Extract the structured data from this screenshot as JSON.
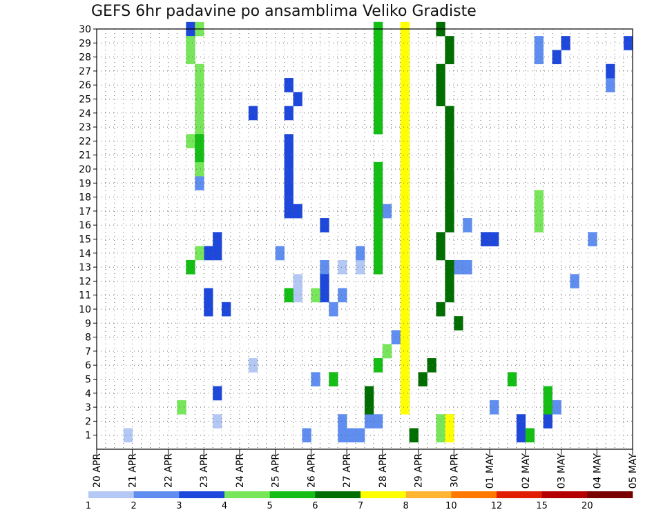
{
  "chart_data": {
    "type": "heatmap",
    "title": "GEFS 6hr padavine po ansamblima Veliko Gradiste",
    "xlabel": "",
    "ylabel": "",
    "x_tick_labels": [
      "20 APR",
      "21 APR",
      "22 APR",
      "23 APR",
      "24 APR",
      "25 APR",
      "26 APR",
      "27 APR",
      "28 APR",
      "29 APR",
      "30 APR",
      "01 MAY",
      "02 MAY",
      "03 MAY",
      "04 MAY",
      "05 MAY"
    ],
    "y_tick_labels": [
      "1",
      "2",
      "3",
      "4",
      "5",
      "6",
      "7",
      "8",
      "9",
      "10",
      "11",
      "12",
      "13",
      "14",
      "15",
      "16",
      "17",
      "18",
      "19",
      "20",
      "21",
      "22",
      "23",
      "24",
      "25",
      "26",
      "27",
      "28",
      "29",
      "30"
    ],
    "time_steps": 60,
    "member_range": [
      0,
      30
    ],
    "grid": true,
    "legend_position": "bottom",
    "legend": {
      "labels": [
        "1",
        "2",
        "3",
        "4",
        "5",
        "6",
        "7",
        "8",
        "10",
        "12",
        "15",
        "20"
      ],
      "colors": [
        "#b4c8f5",
        "#5f8ef0",
        "#1e48dc",
        "#78e65a",
        "#14be14",
        "#006e00",
        "#ffff00",
        "#ffb432",
        "#ff7800",
        "#e11e00",
        "#b40000",
        "#780000"
      ]
    },
    "cells": [
      [
        1,
        1,
        3
      ],
      [
        1,
        2,
        13
      ],
      [
        1,
        6,
        17
      ],
      [
        1,
        11,
        22
      ],
      [
        1,
        12,
        22
      ],
      [
        1,
        13,
        27
      ],
      [
        1,
        13,
        29
      ],
      [
        1,
        26,
        31
      ],
      [
        1,
        34,
        37
      ],
      [
        1,
        40,
        40
      ],
      [
        1,
        51,
        52
      ],
      [
        1,
        52,
        53
      ],
      [
        1,
        55,
        56
      ],
      [
        2,
        1,
        23
      ],
      [
        2,
        1,
        27
      ],
      [
        2,
        1,
        28
      ],
      [
        2,
        1,
        29
      ],
      [
        2,
        2,
        27
      ],
      [
        2,
        2,
        30
      ],
      [
        2,
        2,
        31
      ],
      [
        2,
        3,
        44
      ],
      [
        2,
        3,
        51
      ],
      [
        2,
        5,
        24
      ],
      [
        2,
        8,
        33
      ],
      [
        2,
        10,
        26
      ],
      [
        2,
        11,
        27
      ],
      [
        2,
        12,
        53
      ],
      [
        2,
        13,
        25
      ],
      [
        2,
        13,
        40
      ],
      [
        2,
        13,
        41
      ],
      [
        2,
        14,
        20
      ],
      [
        2,
        14,
        29
      ],
      [
        2,
        15,
        55
      ],
      [
        2,
        16,
        41
      ],
      [
        2,
        17,
        32
      ],
      [
        2,
        19,
        11
      ],
      [
        2,
        20,
        11
      ],
      [
        2,
        24,
        11
      ],
      [
        2,
        26,
        57
      ],
      [
        2,
        28,
        49
      ],
      [
        2,
        29,
        49
      ],
      [
        2,
        30,
        31
      ],
      [
        3,
        1,
        47
      ],
      [
        3,
        2,
        47
      ],
      [
        3,
        2,
        50
      ],
      [
        3,
        4,
        13
      ],
      [
        3,
        10,
        12
      ],
      [
        3,
        10,
        14
      ],
      [
        3,
        11,
        12
      ],
      [
        3,
        11,
        25
      ],
      [
        3,
        12,
        25
      ],
      [
        3,
        14,
        12
      ],
      [
        3,
        14,
        13
      ],
      [
        3,
        15,
        13
      ],
      [
        3,
        15,
        43
      ],
      [
        3,
        15,
        44
      ],
      [
        3,
        16,
        25
      ],
      [
        3,
        17,
        21
      ],
      [
        3,
        17,
        22
      ],
      [
        3,
        18,
        21
      ],
      [
        3,
        19,
        21
      ],
      [
        3,
        20,
        21
      ],
      [
        3,
        21,
        21
      ],
      [
        3,
        22,
        21
      ],
      [
        3,
        24,
        17
      ],
      [
        3,
        24,
        21
      ],
      [
        3,
        25,
        22
      ],
      [
        3,
        26,
        21
      ],
      [
        3,
        26,
        31
      ],
      [
        3,
        27,
        57
      ],
      [
        3,
        28,
        51
      ],
      [
        3,
        29,
        52
      ],
      [
        3,
        29,
        59
      ],
      [
        3,
        30,
        10
      ],
      [
        4,
        1,
        38
      ],
      [
        4,
        2,
        38
      ],
      [
        4,
        2,
        39
      ],
      [
        4,
        3,
        9
      ],
      [
        4,
        5,
        26
      ],
      [
        4,
        7,
        32
      ],
      [
        4,
        11,
        24
      ],
      [
        4,
        14,
        11
      ],
      [
        4,
        16,
        49
      ],
      [
        4,
        17,
        49
      ],
      [
        4,
        18,
        49
      ],
      [
        4,
        20,
        11
      ],
      [
        4,
        21,
        11
      ],
      [
        4,
        22,
        10
      ],
      [
        4,
        23,
        11
      ],
      [
        4,
        24,
        11
      ],
      [
        4,
        25,
        11
      ],
      [
        4,
        26,
        11
      ],
      [
        4,
        27,
        11
      ],
      [
        4,
        28,
        10
      ],
      [
        4,
        29,
        10
      ],
      [
        4,
        30,
        11
      ],
      [
        5,
        1,
        48
      ],
      [
        5,
        3,
        50
      ],
      [
        5,
        4,
        50
      ],
      [
        5,
        5,
        26
      ],
      [
        5,
        5,
        46
      ],
      [
        5,
        6,
        31
      ],
      [
        5,
        11,
        21
      ],
      [
        5,
        13,
        10
      ],
      [
        5,
        13,
        31
      ],
      [
        5,
        14,
        31
      ],
      [
        5,
        15,
        31
      ],
      [
        5,
        16,
        31
      ],
      [
        5,
        17,
        31
      ],
      [
        5,
        18,
        31
      ],
      [
        5,
        19,
        31
      ],
      [
        5,
        20,
        31
      ],
      [
        5,
        21,
        11
      ],
      [
        5,
        22,
        11
      ],
      [
        5,
        23,
        31
      ],
      [
        5,
        24,
        31
      ],
      [
        5,
        25,
        31
      ],
      [
        5,
        26,
        31
      ],
      [
        5,
        27,
        31
      ],
      [
        5,
        28,
        31
      ],
      [
        5,
        29,
        31
      ],
      [
        5,
        30,
        31
      ],
      [
        6,
        1,
        35
      ],
      [
        6,
        3,
        30
      ],
      [
        6,
        4,
        30
      ],
      [
        6,
        5,
        36
      ],
      [
        6,
        6,
        37
      ],
      [
        6,
        9,
        40
      ],
      [
        6,
        10,
        38
      ],
      [
        6,
        11,
        39
      ],
      [
        6,
        12,
        39
      ],
      [
        6,
        13,
        39
      ],
      [
        6,
        14,
        38
      ],
      [
        6,
        15,
        38
      ],
      [
        6,
        16,
        39
      ],
      [
        6,
        17,
        39
      ],
      [
        6,
        18,
        39
      ],
      [
        6,
        19,
        39
      ],
      [
        6,
        20,
        39
      ],
      [
        6,
        21,
        39
      ],
      [
        6,
        22,
        39
      ],
      [
        6,
        23,
        39
      ],
      [
        6,
        24,
        39
      ],
      [
        6,
        25,
        38
      ],
      [
        6,
        26,
        38
      ],
      [
        6,
        27,
        38
      ],
      [
        6,
        28,
        39
      ],
      [
        6,
        29,
        39
      ],
      [
        6,
        30,
        38
      ],
      [
        7,
        1,
        39
      ],
      [
        7,
        2,
        39
      ],
      [
        7,
        3,
        34
      ],
      [
        7,
        4,
        34
      ],
      [
        7,
        5,
        34
      ],
      [
        7,
        6,
        34
      ],
      [
        7,
        7,
        34
      ],
      [
        7,
        8,
        34
      ],
      [
        7,
        9,
        34
      ],
      [
        7,
        10,
        34
      ],
      [
        7,
        11,
        34
      ],
      [
        7,
        12,
        34
      ],
      [
        7,
        13,
        34
      ],
      [
        7,
        14,
        34
      ],
      [
        7,
        15,
        34
      ],
      [
        7,
        16,
        34
      ],
      [
        7,
        17,
        34
      ],
      [
        7,
        18,
        34
      ],
      [
        7,
        19,
        34
      ],
      [
        7,
        20,
        34
      ],
      [
        7,
        21,
        34
      ],
      [
        7,
        22,
        34
      ],
      [
        7,
        23,
        34
      ],
      [
        7,
        24,
        34
      ],
      [
        7,
        25,
        34
      ],
      [
        7,
        26,
        34
      ],
      [
        7,
        27,
        34
      ],
      [
        7,
        28,
        34
      ],
      [
        7,
        29,
        34
      ],
      [
        7,
        30,
        34
      ]
    ]
  }
}
